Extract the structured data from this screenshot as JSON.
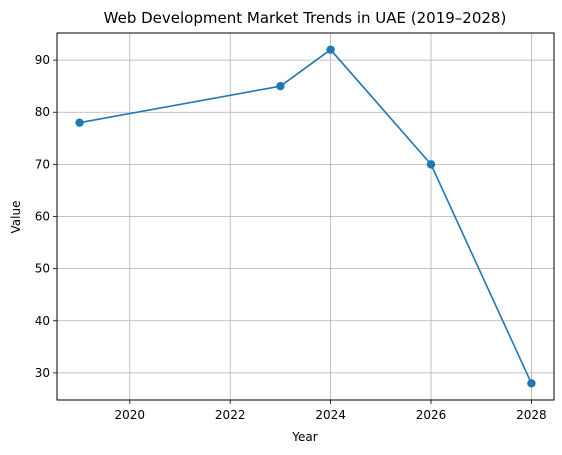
{
  "chart_data": {
    "type": "line",
    "title": "Web Development Market Trends in UAE (2019–2028)",
    "xlabel": "Year",
    "ylabel": "Value",
    "x": [
      2019,
      2023,
      2024,
      2026,
      2028
    ],
    "series": [
      {
        "values": [
          78,
          85,
          92,
          70,
          28
        ]
      }
    ],
    "xlim": [
      2018.55,
      2028.45
    ],
    "ylim": [
      24.8,
      95.2
    ],
    "xticks": [
      2020,
      2022,
      2024,
      2026,
      2028
    ],
    "yticks": [
      30,
      40,
      50,
      60,
      70,
      80,
      90
    ],
    "grid": true,
    "line_color": "#1f77b4",
    "marker": "circle"
  }
}
